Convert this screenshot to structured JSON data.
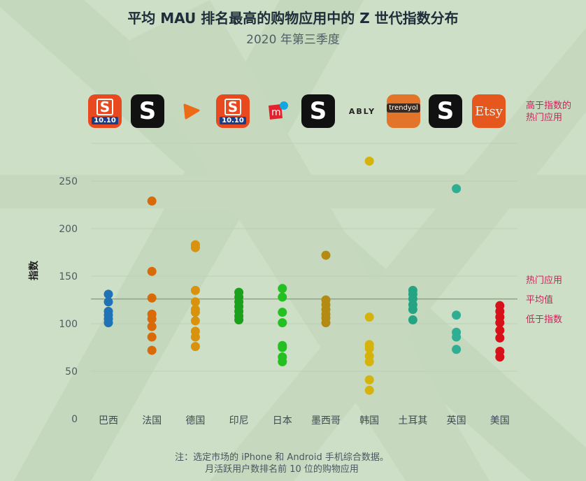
{
  "title": "平均 MAU 排名最高的购物应用中的 Z 世代指数分布",
  "subtitle": "2020 年第三季度",
  "apps": [
    {
      "name": "shopee-icon",
      "label": "S",
      "sub": "10.10",
      "style": "shopee"
    },
    {
      "name": "shein-icon",
      "label": "S",
      "style": "shein"
    },
    {
      "name": "play-icon",
      "label": "",
      "style": "play"
    },
    {
      "name": "shopee-icon",
      "label": "S",
      "sub": "10.10",
      "style": "shopee"
    },
    {
      "name": "mercari-icon",
      "label": "",
      "style": "mercari"
    },
    {
      "name": "shein-icon",
      "label": "S",
      "style": "shein"
    },
    {
      "name": "ably-icon",
      "label": "ABLY",
      "style": "ably"
    },
    {
      "name": "trendyol-icon",
      "label": "trendyol",
      "style": "trendyol"
    },
    {
      "name": "shein-icon",
      "label": "S",
      "style": "shein"
    },
    {
      "name": "etsy-icon",
      "label": "Etsy",
      "style": "etsy"
    }
  ],
  "legend": {
    "above": "高于指数的\n热门应用",
    "hot": "热门应用",
    "average": "平均值",
    "below": "低于指数"
  },
  "footnote": {
    "line1": "注：选定市场的 iPhone 和 Android 手机综合数据。",
    "line2": "月活跃用户数排名前 10 位的购物应用"
  },
  "colors": {
    "background": "#cddfc6",
    "reference_line": "#8fa38c",
    "accent_text": "#c8245a"
  },
  "chart_data": {
    "type": "scatter",
    "title": "平均 MAU 排名最高的购物应用中的 Z 世代指数分布",
    "subtitle": "2020 年第三季度",
    "ylabel": "指数",
    "ylim": [
      0,
      280
    ],
    "yticks": [
      0,
      50,
      100,
      150,
      200,
      250
    ],
    "average": 126,
    "categories": [
      "巴西",
      "法国",
      "德国",
      "印尼",
      "日本",
      "墨西哥",
      "韩国",
      "土耳其",
      "英国",
      "美国"
    ],
    "series": [
      {
        "category": "巴西",
        "color": "#1f72b6",
        "values": [
          131,
          123,
          113,
          109,
          105,
          101
        ]
      },
      {
        "category": "法国",
        "color": "#d86a0a",
        "values": [
          229,
          155,
          127,
          110,
          105,
          97,
          86,
          72
        ]
      },
      {
        "category": "德国",
        "color": "#d9920d",
        "values": [
          183,
          180,
          135,
          123,
          115,
          112,
          103,
          92,
          86,
          76
        ]
      },
      {
        "category": "印尼",
        "color": "#1aa01a",
        "values": [
          133,
          128,
          123,
          118,
          113,
          108,
          104
        ]
      },
      {
        "category": "日本",
        "color": "#22c020",
        "values": [
          137,
          128,
          112,
          101,
          77,
          75,
          65,
          60
        ]
      },
      {
        "category": "墨西哥",
        "color": "#b38a12",
        "values": [
          172,
          125,
          120,
          115,
          110,
          106,
          101
        ]
      },
      {
        "category": "韩国",
        "color": "#d6b20c",
        "values": [
          271,
          107,
          78,
          74,
          66,
          60,
          41,
          30
        ]
      },
      {
        "category": "土耳其",
        "color": "#26a383",
        "values": [
          135,
          131,
          126,
          120,
          115,
          104
        ]
      },
      {
        "category": "英国",
        "color": "#2fae94",
        "values": [
          242,
          109,
          91,
          86,
          73
        ]
      },
      {
        "category": "美国",
        "color": "#d8101a",
        "values": [
          119,
          113,
          107,
          101,
          93,
          85,
          71,
          65
        ]
      }
    ],
    "grid": true,
    "legend": "right"
  }
}
